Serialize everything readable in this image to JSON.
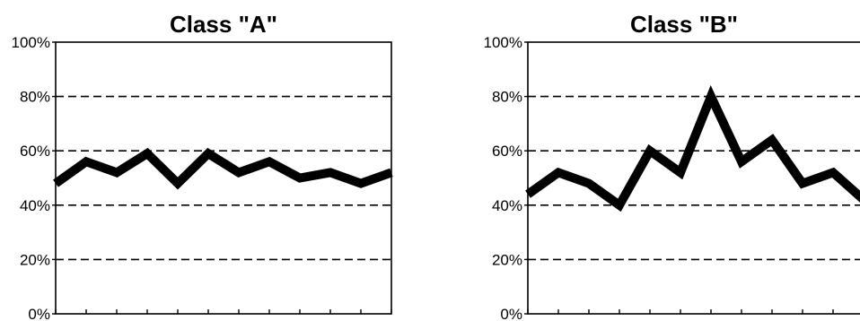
{
  "chart_data": [
    {
      "type": "line",
      "title": "Class \"A\"",
      "xlabel": "",
      "ylabel": "",
      "ylim": [
        0,
        100
      ],
      "y_ticks": [
        "0%",
        "20%",
        "40%",
        "60%",
        "80%",
        "100%"
      ],
      "grid": "horizontal dashed",
      "legend": "none",
      "x": [
        1,
        2,
        3,
        4,
        5,
        6,
        7,
        8,
        9,
        10,
        11,
        12
      ],
      "series": [
        {
          "values": [
            48,
            56,
            52,
            59,
            48,
            59,
            52,
            56,
            50,
            52,
            48,
            52
          ]
        }
      ]
    },
    {
      "type": "line",
      "title": "Class \"B\"",
      "xlabel": "",
      "ylabel": "",
      "ylim": [
        0,
        100
      ],
      "y_ticks": [
        "0%",
        "20%",
        "40%",
        "60%",
        "80%",
        "100%"
      ],
      "grid": "horizontal dashed",
      "legend": "none",
      "x": [
        1,
        2,
        3,
        4,
        5,
        6,
        7,
        8,
        9,
        10,
        11,
        12
      ],
      "series": [
        {
          "values": [
            44,
            52,
            48,
            40,
            60,
            52,
            80,
            56,
            64,
            48,
            52,
            42
          ]
        }
      ]
    }
  ],
  "colors": {
    "line": "#000000",
    "grid": "#000000",
    "background": "#ffffff"
  }
}
